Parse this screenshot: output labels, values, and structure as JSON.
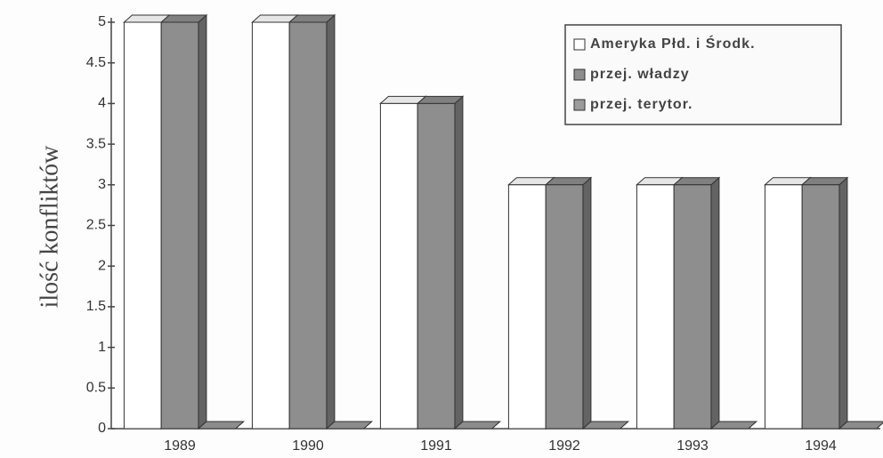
{
  "chart_data": {
    "type": "bar3d",
    "y_label": "ilość konfliktów",
    "categories": [
      "1989",
      "1990",
      "1991",
      "1992",
      "1993",
      "1994"
    ],
    "series": [
      {
        "name": "Ameryka Płd. i Środk.",
        "color": "#ffffff",
        "values": [
          5,
          5,
          4,
          3,
          3,
          3
        ]
      },
      {
        "name": "przej. władzy",
        "color": "#8e8e8e",
        "values": [
          5,
          5,
          4,
          3,
          3,
          3
        ]
      },
      {
        "name": "przej. terytor.",
        "color": "#9c9c9c",
        "values": [
          0,
          0,
          0,
          0,
          0,
          0
        ]
      }
    ],
    "ylim": [
      0,
      5
    ],
    "yticks": [
      0,
      0.5,
      1,
      1.5,
      2,
      2.5,
      3,
      3.5,
      4,
      4.5,
      5
    ],
    "legend": "top-right"
  }
}
